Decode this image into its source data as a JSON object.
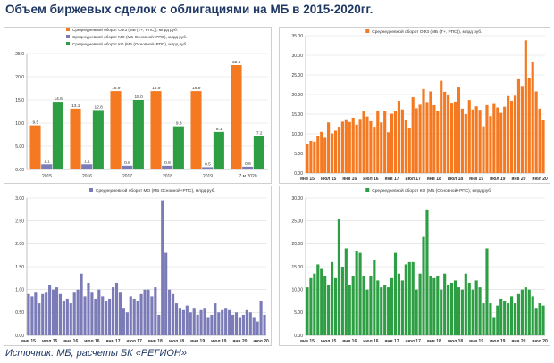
{
  "page": {
    "title": "Объем биржевых сделок с облигациями на МБ в 2015-2020гг.",
    "source": "Источник:  МБ, расчеты БК «РЕГИОН»"
  },
  "chart_data": [
    {
      "id": "c1",
      "type": "bar",
      "title": "",
      "legend_position": "top",
      "categories": [
        "2015",
        "2016",
        "2017",
        "2018",
        "2019",
        "7 м 2020"
      ],
      "ylim": [
        0,
        25
      ],
      "yticks": [
        "0.00",
        "5.00",
        "10.0",
        "15.0",
        "20.0",
        "25.0"
      ],
      "grid": true,
      "series": [
        {
          "name": "Среднедневной оборот ОФЗ (МБ (Т+, РПС)), млрд руб.",
          "color": "#f47920",
          "values": [
            9.5,
            13.1,
            16.9,
            16.9,
            16.9,
            22.5
          ]
        },
        {
          "name": "Среднедневной оборот МО (МБ Основной+РПС), млрд руб.",
          "color": "#7b7bb8",
          "values": [
            1.1,
            1.1,
            0.8,
            0.8,
            0.5,
            0.6
          ]
        },
        {
          "name": "Среднедневной оборот КО (МБ (Основной+РПС), млрд руб.",
          "color": "#2e9e44",
          "values": [
            14.6,
            12.8,
            15.0,
            9.3,
            8.1,
            7.2
          ]
        }
      ]
    },
    {
      "id": "c2",
      "type": "bar",
      "title": "",
      "legend_position": "top",
      "series_name": "Среднедневной оборот ОФЗ (МБ (Т+, РПС)), млрд руб.",
      "color": "#f47920",
      "ylim": [
        0,
        35
      ],
      "yticks": [
        "0.00",
        "5.00",
        "10.00",
        "15.00",
        "20.00",
        "25.00",
        "30.00",
        "35.00"
      ],
      "xticks": [
        "янв 15",
        "июл 15",
        "янв 16",
        "июл 16",
        "янв 17",
        "июл 17",
        "янв 18",
        "июл 18",
        "янв 19",
        "июл 19",
        "янв 20",
        "июл 20"
      ],
      "grid": true,
      "values": [
        7.5,
        8.2,
        8.0,
        9.4,
        10.5,
        9.0,
        12.9,
        10.1,
        10.8,
        11.8,
        13.1,
        13.7,
        13.0,
        14.1,
        12.3,
        13.8,
        15.8,
        14.4,
        13.2,
        11.8,
        15.7,
        12.9,
        15.7,
        10.4,
        15.1,
        15.7,
        18.4,
        16.2,
        13.6,
        11.4,
        19.3,
        16.5,
        17.4,
        21.4,
        18.1,
        20.8,
        17.3,
        15.9,
        23.5,
        20.7,
        19.9,
        17.7,
        18.2,
        21.8,
        16.4,
        15.0,
        18.6,
        16.2,
        17.0,
        16.1,
        11.9,
        17.3,
        14.5,
        17.6,
        16.7,
        15.3,
        16.9,
        19.6,
        18.4,
        19.7,
        23.9,
        22.2,
        33.8,
        24.1,
        28.3,
        20.8,
        16.4,
        13.5
      ]
    },
    {
      "id": "c3",
      "type": "bar",
      "title": "",
      "legend_position": "top",
      "series_name": "Среднедневной оборот МО (МБ Основной+РПС), млрд руб.",
      "color": "#7b7bb8",
      "ylim": [
        0,
        3
      ],
      "yticks": [
        "0.00",
        "0.50",
        "1.00",
        "1.50",
        "2.00",
        "2.50",
        "3.00"
      ],
      "xticks": [
        "янв 15",
        "июл 15",
        "янв 16",
        "июл 16",
        "янв 17",
        "июл 17",
        "янв 18",
        "июл 18",
        "янв 19",
        "июл 19",
        "янв 20",
        "июл 20"
      ],
      "grid": true,
      "values": [
        0.9,
        0.85,
        0.95,
        0.7,
        0.9,
        0.95,
        1.1,
        1.0,
        1.05,
        0.9,
        0.75,
        0.8,
        0.7,
        0.95,
        1.0,
        1.35,
        0.85,
        1.15,
        0.95,
        0.8,
        1.0,
        0.85,
        0.75,
        0.8,
        1.05,
        1.15,
        0.95,
        0.6,
        0.5,
        0.85,
        0.8,
        0.75,
        0.9,
        1.0,
        1.0,
        0.85,
        1.05,
        0.45,
        2.95,
        1.8,
        1.0,
        0.9,
        0.7,
        0.6,
        0.55,
        0.65,
        0.5,
        0.6,
        0.45,
        0.55,
        0.6,
        0.4,
        0.45,
        0.7,
        0.5,
        0.55,
        0.6,
        0.55,
        0.45,
        0.5,
        0.4,
        0.45,
        0.55,
        0.5,
        0.4,
        0.3,
        0.75,
        0.45
      ]
    },
    {
      "id": "c4",
      "type": "bar",
      "title": "",
      "legend_position": "top",
      "series_name": "Среднедневной оборот КО (МБ (Основной+РПС), млрд руб.",
      "color": "#2e9e44",
      "ylim": [
        0,
        30
      ],
      "yticks": [
        "0.00",
        "5.00",
        "10.00",
        "15.00",
        "20.00",
        "25.00",
        "30.00"
      ],
      "xticks": [
        "янв 15",
        "июл 15",
        "янв 16",
        "июл 16",
        "янв 17",
        "июл 17",
        "янв 18",
        "июл 18",
        "янв 19",
        "июл 19",
        "янв 20",
        "июл 20"
      ],
      "grid": true,
      "values": [
        10.5,
        12.5,
        13.5,
        15.5,
        14.5,
        13.0,
        11.0,
        16.0,
        12.5,
        25.5,
        15.0,
        19.0,
        11.0,
        13.0,
        18.5,
        18.0,
        13.0,
        10.0,
        13.0,
        16.5,
        12.0,
        10.5,
        11.0,
        10.5,
        12.5,
        18.0,
        13.5,
        12.0,
        15.5,
        16.0,
        16.0,
        10.0,
        13.5,
        21.5,
        27.5,
        13.0,
        12.5,
        13.0,
        10.0,
        13.5,
        11.0,
        11.5,
        12.0,
        10.5,
        10.0,
        13.5,
        11.5,
        10.0,
        12.0,
        10.5,
        7.0,
        19.0,
        7.0,
        4.0,
        6.5,
        8.0,
        7.5,
        7.0,
        8.5,
        7.0,
        9.0,
        10.0,
        10.5,
        10.0,
        8.5,
        6.0,
        7.0,
        6.5
      ]
    }
  ]
}
